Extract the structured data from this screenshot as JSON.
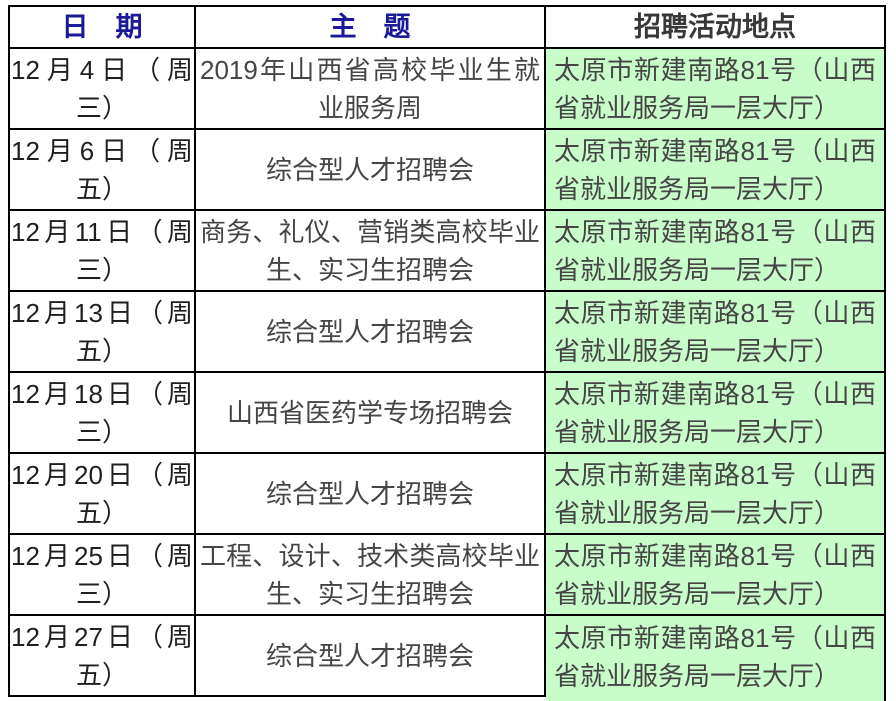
{
  "table": {
    "headers": [
      {
        "id": "date",
        "label": "日　期"
      },
      {
        "id": "subject",
        "label": "主　题"
      },
      {
        "id": "location",
        "label": "招聘活动地点"
      }
    ],
    "rows": [
      {
        "date": "12月4日（周三）",
        "date_lines": [
          "12月4日（周",
          "三）"
        ],
        "subject": "2019年山西省高校毕业生就业服务周",
        "subject_lines": [
          "2019年山西省高校毕业生就",
          "业服务周"
        ],
        "location": "太原市新建南路81号（山西省就业服务局一层大厅）",
        "location_lines": [
          "太原市新建南路81号（山西",
          "省就业服务局一层大厅）"
        ]
      },
      {
        "date": "12月6日（周五）",
        "date_lines": [
          "12月6日（周",
          "五）"
        ],
        "subject": "综合型人才招聘会",
        "subject_lines": [
          "综合型人才招聘会"
        ],
        "location": "太原市新建南路81号（山西省就业服务局一层大厅）",
        "location_lines": [
          "太原市新建南路81号（山西",
          "省就业服务局一层大厅）"
        ]
      },
      {
        "date": "12月11日（周三）",
        "date_lines": [
          "12月11日（周",
          "三）"
        ],
        "subject": "商务、礼仪、营销类高校毕业生、实习生招聘会",
        "subject_lines": [
          "商务、礼仪、营销类高校毕业",
          "生、实习生招聘会"
        ],
        "location": "太原市新建南路81号（山西省就业服务局一层大厅）",
        "location_lines": [
          "太原市新建南路81号（山西",
          "省就业服务局一层大厅）"
        ]
      },
      {
        "date": "12月13日（周五）",
        "date_lines": [
          "12月13日（周",
          "五）"
        ],
        "subject": "综合型人才招聘会",
        "subject_lines": [
          "综合型人才招聘会"
        ],
        "location": "太原市新建南路81号（山西省就业服务局一层大厅）",
        "location_lines": [
          "太原市新建南路81号（山西",
          "省就业服务局一层大厅）"
        ]
      },
      {
        "date": "12月18日（周三）",
        "date_lines": [
          "12月18日（周",
          "三）"
        ],
        "subject": "山西省医药学专场招聘会",
        "subject_lines": [
          "山西省医药学专场招聘会"
        ],
        "location": "太原市新建南路81号（山西省就业服务局一层大厅）",
        "location_lines": [
          "太原市新建南路81号（山西",
          "省就业服务局一层大厅）"
        ]
      },
      {
        "date": "12月20日（周五）",
        "date_lines": [
          "12月20日（周",
          "五）"
        ],
        "subject": "综合型人才招聘会",
        "subject_lines": [
          "综合型人才招聘会"
        ],
        "location": "太原市新建南路81号（山西省就业服务局一层大厅）",
        "location_lines": [
          "太原市新建南路81号（山西",
          "省就业服务局一层大厅）"
        ]
      },
      {
        "date": "12月25日（周三）",
        "date_lines": [
          "12月25日（周",
          "三）"
        ],
        "subject": "工程、设计、技术类高校毕业生、实习生招聘会",
        "subject_lines": [
          "工程、设计、技术类高校毕业",
          "生、实习生招聘会"
        ],
        "location": "太原市新建南路81号（山西省就业服务局一层大厅）",
        "location_lines": [
          "太原市新建南路81号（山西",
          "省就业服务局一层大厅）"
        ]
      },
      {
        "date": "12月27日（周五）",
        "date_lines": [
          "12月27日（周",
          "五）"
        ],
        "subject": "综合型人才招聘会",
        "subject_lines": [
          "综合型人才招聘会"
        ],
        "location": "太原市新建南路81号（山西省就业服务局一层大厅）",
        "location_lines": [
          "太原市新建南路81号（山西",
          "省就业服务局一层大厅）"
        ]
      }
    ]
  },
  "colors": {
    "page_bg": "#ffffff",
    "header_blue": "#1a1a99",
    "header_dark": "#383838",
    "date_text": "#1f1f1f",
    "subject_text": "#454545",
    "location_text": "#454545",
    "location_bg": "#c8fcc9",
    "border": "#000000"
  }
}
